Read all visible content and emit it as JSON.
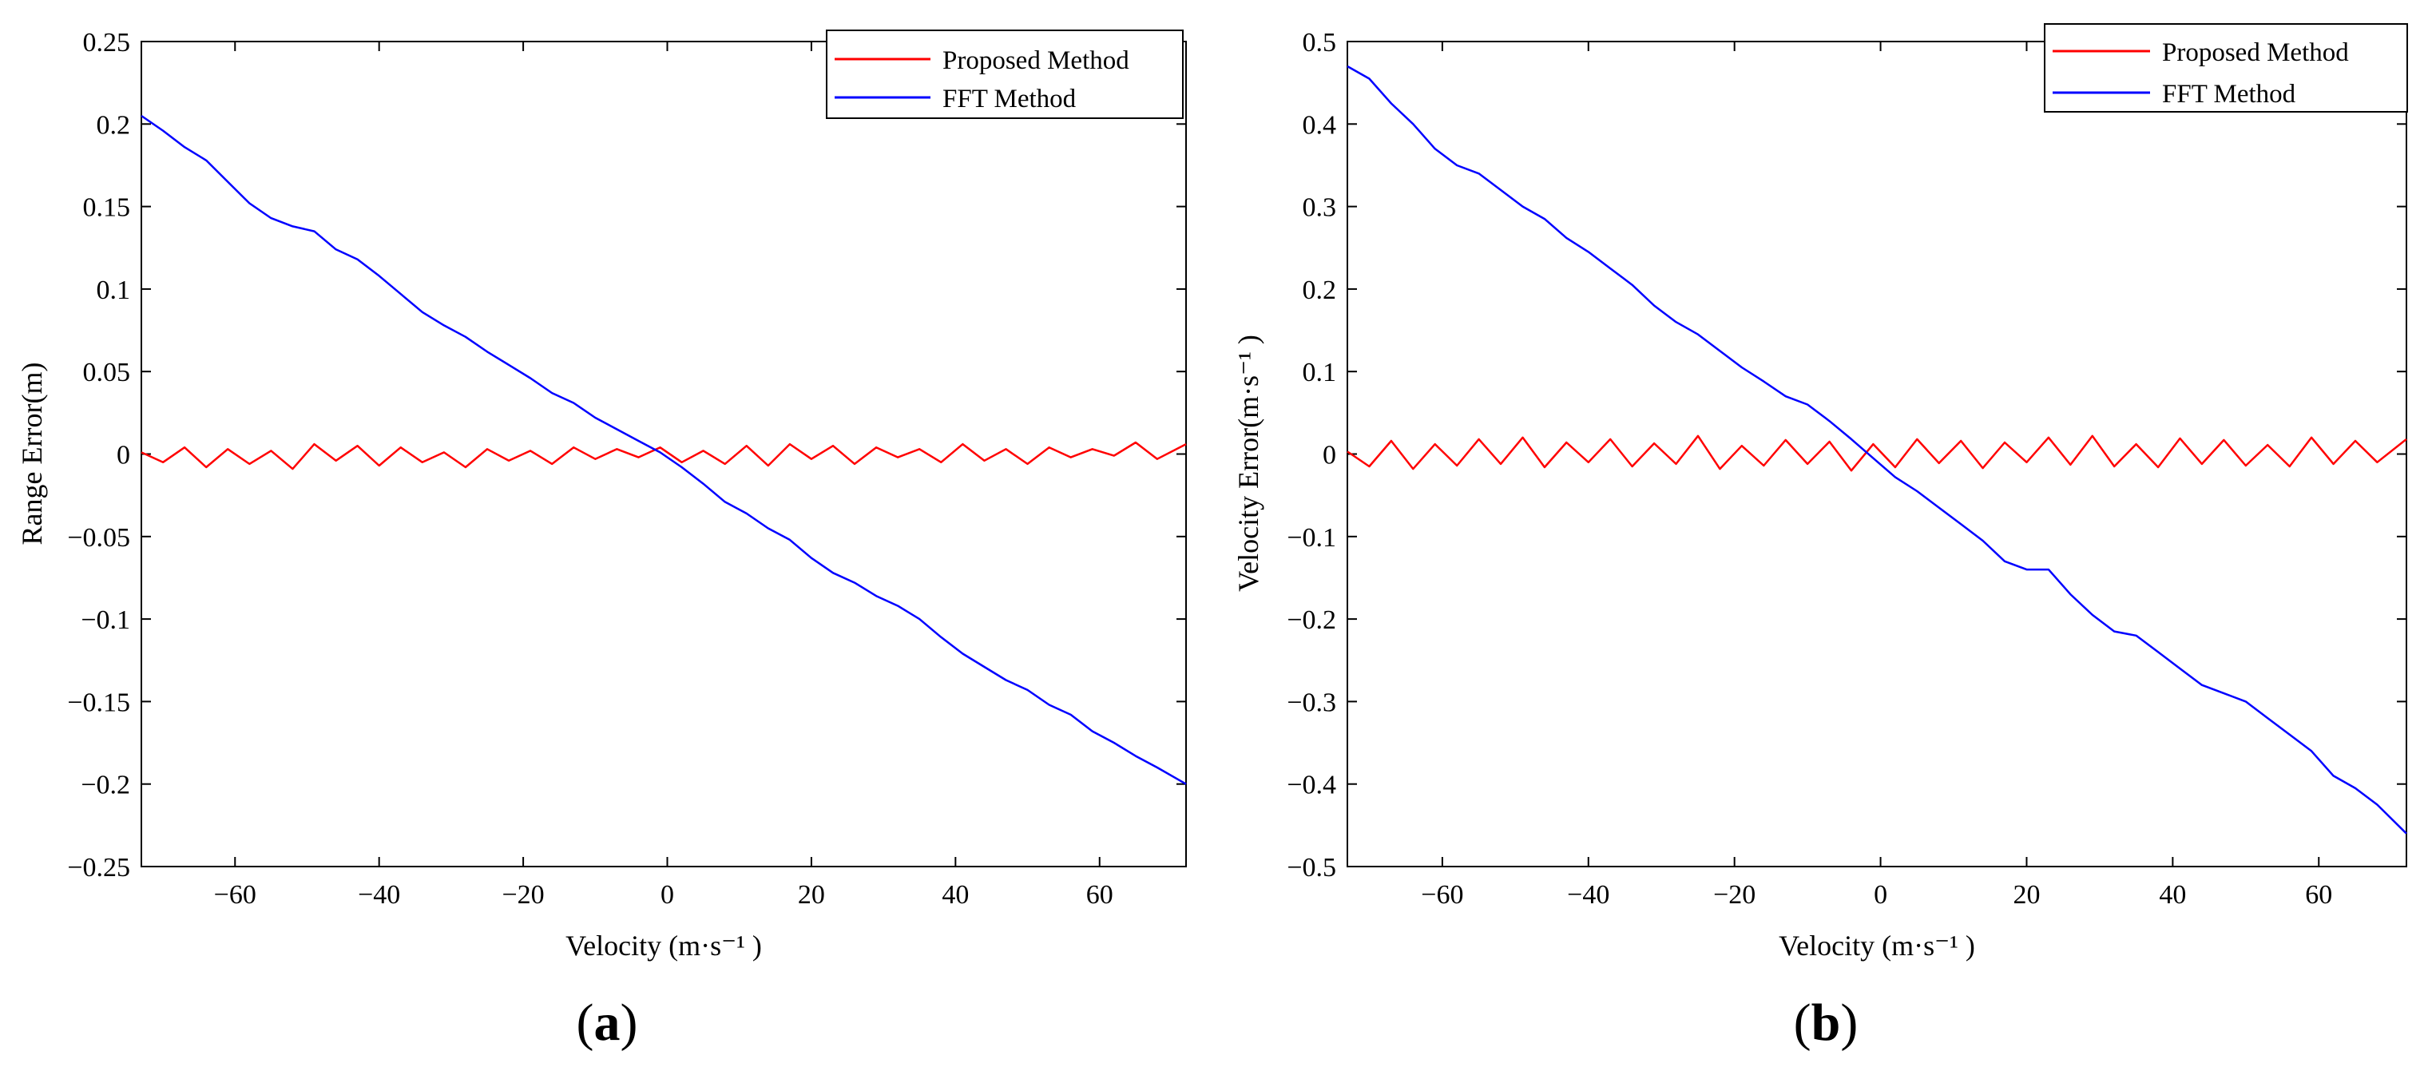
{
  "chart_data": [
    {
      "type": "line",
      "panel_label": "a",
      "xlabel": "Velocity (m·s⁻¹ )",
      "ylabel": "Range Error(m)",
      "xlim": [
        -73,
        72
      ],
      "ylim": [
        -0.25,
        0.25
      ],
      "xticks": [
        -60,
        -40,
        -20,
        0,
        20,
        40,
        60
      ],
      "yticks": [
        -0.25,
        -0.2,
        -0.15,
        -0.1,
        -0.05,
        0,
        0.05,
        0.1,
        0.15,
        0.2,
        0.25
      ],
      "ytick_labels": [
        "−0.25",
        "−0.2",
        "−0.15",
        "−0.1",
        "−0.05",
        "0",
        "0.05",
        "0.1",
        "0.15",
        "0.2",
        "0.25"
      ],
      "xtick_labels": [
        "−60",
        "−40",
        "−20",
        "0",
        "20",
        "40",
        "60"
      ],
      "legend_position": "top-right",
      "series": [
        {
          "name": "Proposed Method",
          "color": "#ff0000",
          "x": [
            -73,
            -70,
            -67,
            -64,
            -61,
            -58,
            -55,
            -52,
            -49,
            -46,
            -43,
            -40,
            -37,
            -34,
            -31,
            -28,
            -25,
            -22,
            -19,
            -16,
            -13,
            -10,
            -7,
            -4,
            -1,
            2,
            5,
            8,
            11,
            14,
            17,
            20,
            23,
            26,
            29,
            32,
            35,
            38,
            41,
            44,
            47,
            50,
            53,
            56,
            59,
            62,
            65,
            68,
            72
          ],
          "y": [
            0.001,
            -0.005,
            0.004,
            -0.008,
            0.003,
            -0.006,
            0.002,
            -0.009,
            0.006,
            -0.004,
            0.005,
            -0.007,
            0.004,
            -0.005,
            0.001,
            -0.008,
            0.003,
            -0.004,
            0.002,
            -0.006,
            0.004,
            -0.003,
            0.003,
            -0.002,
            0.004,
            -0.005,
            0.002,
            -0.006,
            0.005,
            -0.007,
            0.006,
            -0.003,
            0.005,
            -0.006,
            0.004,
            -0.002,
            0.003,
            -0.005,
            0.006,
            -0.004,
            0.003,
            -0.006,
            0.004,
            -0.002,
            0.003,
            -0.001,
            0.007,
            -0.003,
            0.006
          ]
        },
        {
          "name": "FFT Method",
          "color": "#0000ff",
          "x": [
            -73,
            -70,
            -67,
            -64,
            -61,
            -58,
            -55,
            -52,
            -49,
            -46,
            -43,
            -40,
            -37,
            -34,
            -31,
            -28,
            -25,
            -22,
            -19,
            -16,
            -13,
            -10,
            -7,
            -4,
            -1,
            2,
            5,
            8,
            11,
            14,
            17,
            20,
            23,
            26,
            29,
            32,
            35,
            38,
            41,
            44,
            47,
            50,
            53,
            56,
            59,
            62,
            65,
            68,
            72
          ],
          "y": [
            0.205,
            0.196,
            0.186,
            0.178,
            0.165,
            0.152,
            0.143,
            0.138,
            0.135,
            0.124,
            0.118,
            0.108,
            0.097,
            0.086,
            0.078,
            0.071,
            0.062,
            0.054,
            0.046,
            0.037,
            0.031,
            0.022,
            0.015,
            0.008,
            0.001,
            -0.008,
            -0.018,
            -0.029,
            -0.036,
            -0.045,
            -0.052,
            -0.063,
            -0.072,
            -0.078,
            -0.086,
            -0.092,
            -0.1,
            -0.111,
            -0.121,
            -0.129,
            -0.137,
            -0.143,
            -0.152,
            -0.158,
            -0.168,
            -0.175,
            -0.183,
            -0.19,
            -0.2
          ]
        }
      ]
    },
    {
      "type": "line",
      "panel_label": "b",
      "xlabel": "Velocity (m·s⁻¹ )",
      "ylabel": "Velocity Error(m·s⁻¹ )",
      "xlim": [
        -73,
        72
      ],
      "ylim": [
        -0.5,
        0.5
      ],
      "xticks": [
        -60,
        -40,
        -20,
        0,
        20,
        40,
        60
      ],
      "yticks": [
        -0.5,
        -0.4,
        -0.3,
        -0.2,
        -0.1,
        0,
        0.1,
        0.2,
        0.3,
        0.4,
        0.5
      ],
      "ytick_labels": [
        "−0.5",
        "−0.4",
        "−0.3",
        "−0.2",
        "−0.1",
        "0",
        "0.1",
        "0.2",
        "0.3",
        "0.4",
        "0.5"
      ],
      "xtick_labels": [
        "−60",
        "−40",
        "−20",
        "0",
        "20",
        "40",
        "60"
      ],
      "legend_position": "top-right",
      "series": [
        {
          "name": "Proposed Method",
          "color": "#ff0000",
          "x": [
            -73,
            -70,
            -67,
            -64,
            -61,
            -58,
            -55,
            -52,
            -49,
            -46,
            -43,
            -40,
            -37,
            -34,
            -31,
            -28,
            -25,
            -22,
            -19,
            -16,
            -13,
            -10,
            -7,
            -4,
            -1,
            2,
            5,
            8,
            11,
            14,
            17,
            20,
            23,
            26,
            29,
            32,
            35,
            38,
            41,
            44,
            47,
            50,
            53,
            56,
            59,
            62,
            65,
            68,
            72
          ],
          "y": [
            0.003,
            -0.015,
            0.016,
            -0.018,
            0.012,
            -0.014,
            0.018,
            -0.012,
            0.02,
            -0.016,
            0.014,
            -0.01,
            0.018,
            -0.015,
            0.013,
            -0.012,
            0.022,
            -0.018,
            0.01,
            -0.014,
            0.017,
            -0.012,
            0.015,
            -0.02,
            0.012,
            -0.016,
            0.018,
            -0.011,
            0.016,
            -0.017,
            0.014,
            -0.01,
            0.02,
            -0.013,
            0.022,
            -0.015,
            0.012,
            -0.016,
            0.019,
            -0.012,
            0.017,
            -0.014,
            0.011,
            -0.015,
            0.02,
            -0.012,
            0.016,
            -0.01,
            0.018
          ]
        },
        {
          "name": "FFT Method",
          "color": "#0000ff",
          "x": [
            -73,
            -70,
            -67,
            -64,
            -61,
            -58,
            -55,
            -52,
            -49,
            -46,
            -43,
            -40,
            -37,
            -34,
            -31,
            -28,
            -25,
            -22,
            -19,
            -16,
            -13,
            -10,
            -7,
            -4,
            -1,
            2,
            5,
            8,
            11,
            14,
            17,
            20,
            23,
            26,
            29,
            32,
            35,
            38,
            41,
            44,
            47,
            50,
            53,
            56,
            59,
            62,
            65,
            68,
            72
          ],
          "y": [
            0.47,
            0.455,
            0.425,
            0.4,
            0.37,
            0.35,
            0.34,
            0.32,
            0.3,
            0.285,
            0.262,
            0.245,
            0.225,
            0.205,
            0.18,
            0.16,
            0.145,
            0.125,
            0.105,
            0.088,
            0.07,
            0.06,
            0.04,
            0.018,
            -0.005,
            -0.028,
            -0.045,
            -0.065,
            -0.085,
            -0.105,
            -0.13,
            -0.14,
            -0.14,
            -0.17,
            -0.195,
            -0.215,
            -0.22,
            -0.24,
            -0.26,
            -0.28,
            -0.29,
            -0.3,
            -0.32,
            -0.34,
            -0.36,
            -0.39,
            -0.405,
            -0.425,
            -0.46
          ]
        }
      ]
    }
  ]
}
